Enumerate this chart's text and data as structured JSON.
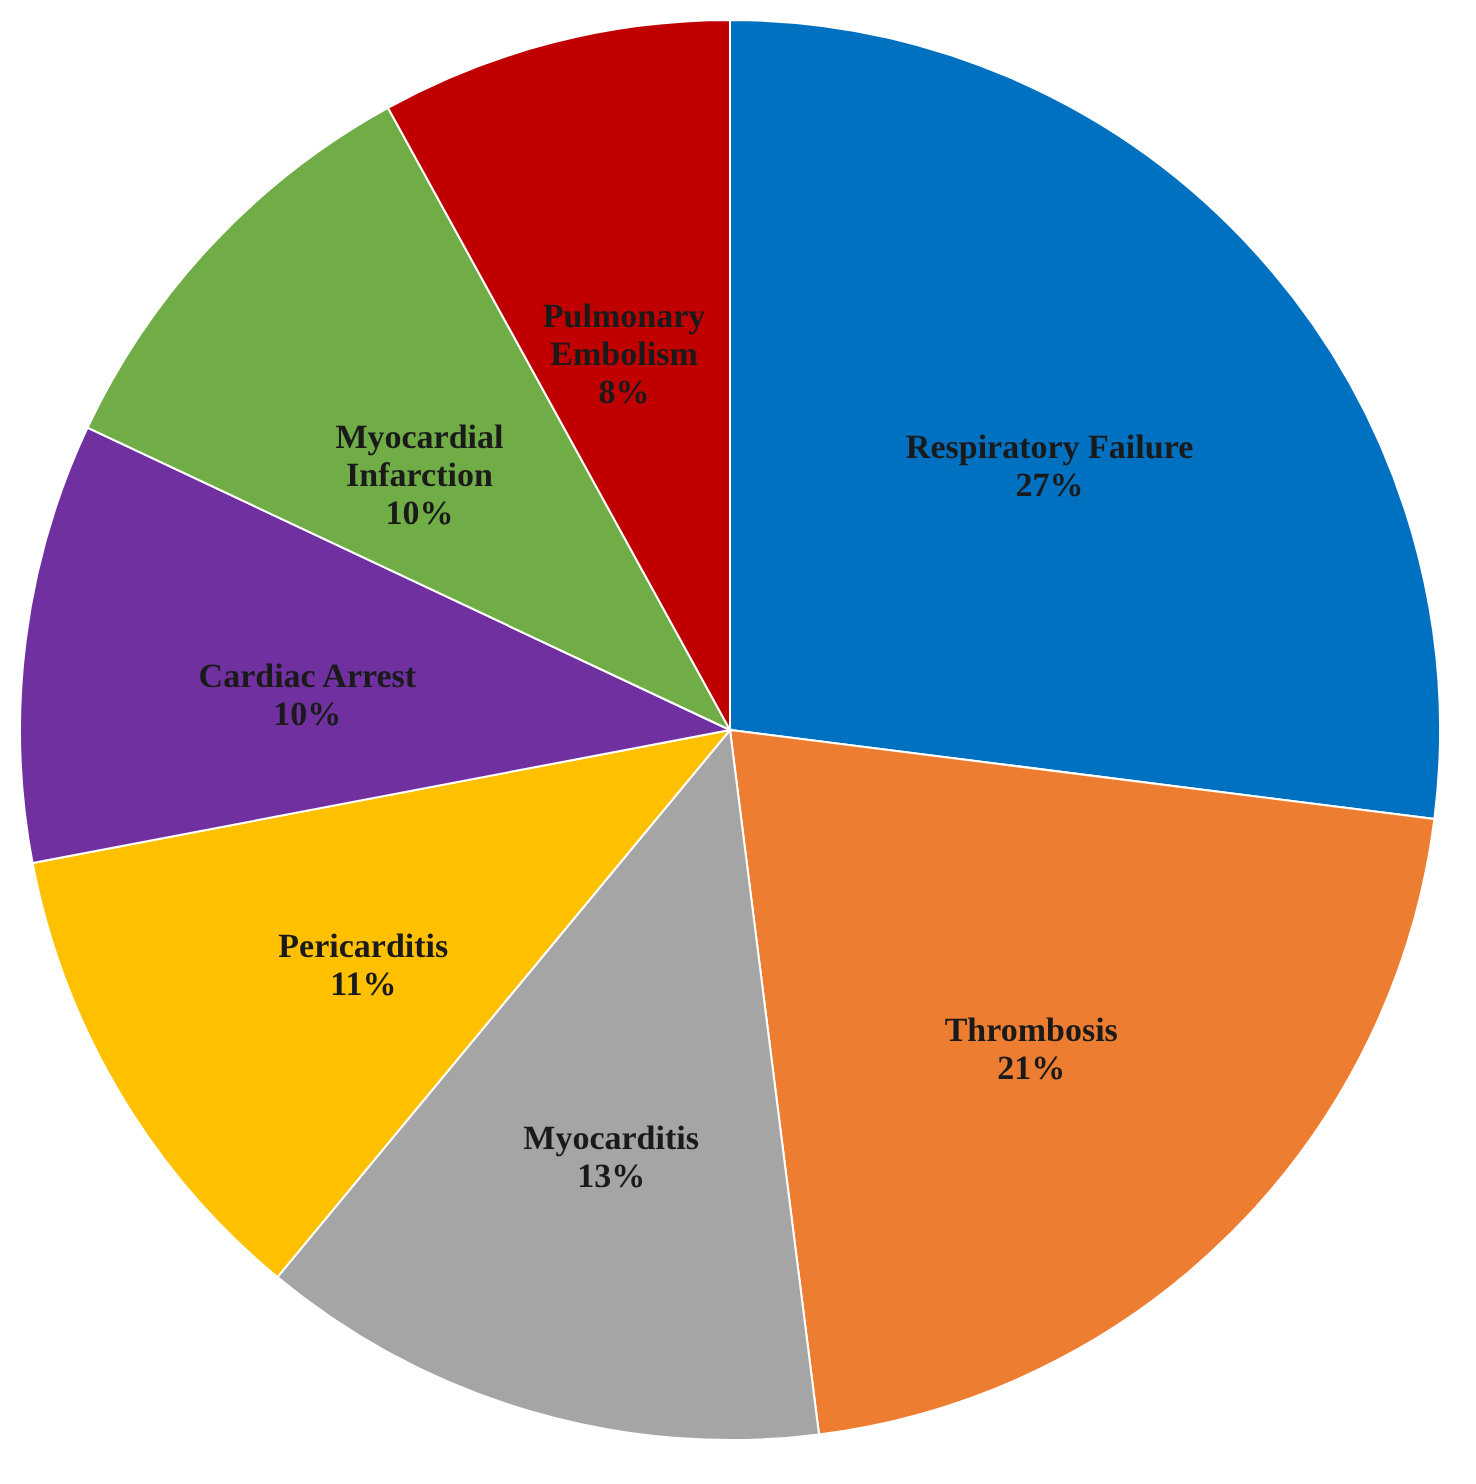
{
  "chart_data": {
    "type": "pie",
    "categories": [
      "Respiratory Failure",
      "Thrombosis",
      "Myocarditis",
      "Pericarditis",
      "Cardiac Arrest",
      "Myocardial Infarction",
      "Pulmonary Embolism"
    ],
    "values": [
      27,
      21,
      13,
      11,
      10,
      10,
      8
    ],
    "value_labels": [
      "27%",
      "21%",
      "13%",
      "11%",
      "10%",
      "10%",
      "8%"
    ],
    "colors": [
      "#0070c0",
      "#ed7d31",
      "#a5a5a5",
      "#ffc000",
      "#7030a0",
      "#70ad47",
      "#c00000"
    ],
    "legend": false
  }
}
